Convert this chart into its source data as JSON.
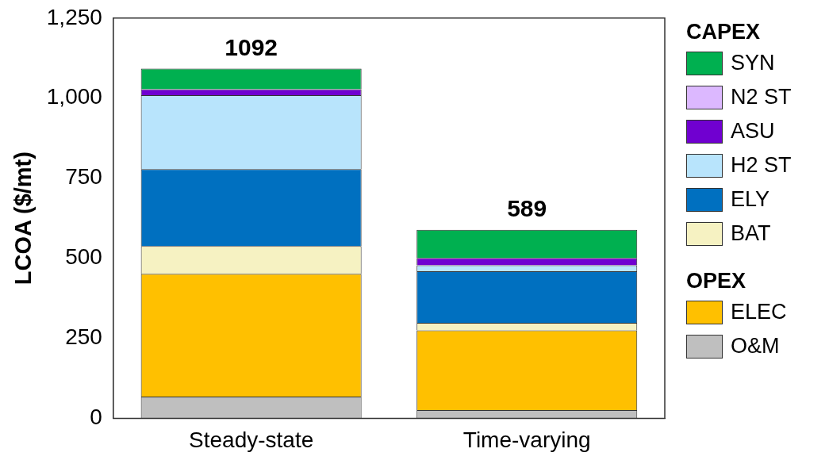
{
  "chart_data": {
    "type": "bar",
    "stacked": true,
    "ylabel": "LCOA ($/mt)",
    "categories": [
      "Steady-state",
      "Time-varying"
    ],
    "series": [
      {
        "name": "O&M",
        "color": "#bfbfbf",
        "values": [
          68,
          26
        ]
      },
      {
        "name": "ELEC",
        "color": "#ffc000",
        "values": [
          383,
          249
        ]
      },
      {
        "name": "BAT",
        "color": "#f6f2c2",
        "values": [
          87,
          23
        ]
      },
      {
        "name": "ELY",
        "color": "#0070c0",
        "values": [
          240,
          161
        ]
      },
      {
        "name": "H2 ST",
        "color": "#b8e4fc",
        "values": [
          231,
          19
        ]
      },
      {
        "name": "ASU",
        "color": "#7000d0",
        "values": [
          19,
          23
        ]
      },
      {
        "name": "N2 ST",
        "color": "#dcb8ff",
        "values": [
          0,
          0
        ]
      },
      {
        "name": "SYN",
        "color": "#00b050",
        "values": [
          64,
          88
        ]
      }
    ],
    "totals": [
      "1092",
      "589"
    ],
    "ylim": [
      0,
      1250
    ],
    "yticks": [
      0,
      250,
      500,
      750,
      {
        "value": 1000,
        "label": "1,000"
      },
      {
        "value": 1250,
        "label": "1,250"
      }
    ],
    "grid": false,
    "legend": "right",
    "legend_title": "CAPEX",
    "annotations": [
      "OPEX"
    ]
  }
}
